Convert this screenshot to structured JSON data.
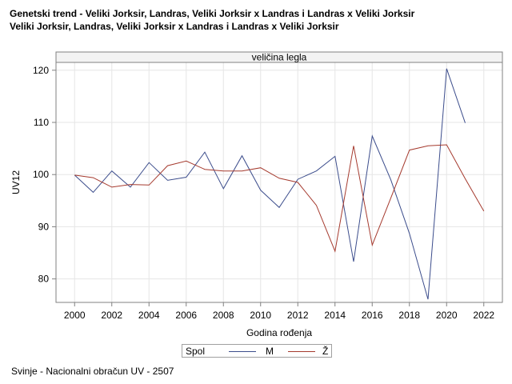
{
  "titles": [
    "Genetski trend - Veliki Jorksir, Landras, Veliki Jorksir x Landras i Landras x Veliki Jorksir",
    "Veliki Jorksir, Landras, Veliki Jorksir x Landras i Landras x Veliki Jorksir"
  ],
  "footnote": "Svinje - Nacionalni obračun UV - 2507",
  "legend": {
    "title": "Spol"
  },
  "colors": {
    "M": "#3c4d8c",
    "Z": "#a53a2e",
    "grid": "#e6e6e6",
    "frame": "#808080"
  },
  "chart_data": {
    "type": "line",
    "panel_title": "veličina legla",
    "xlabel": "Godina rođenja",
    "ylabel": "UV12",
    "xlim": [
      1999,
      2023
    ],
    "ylim": [
      75.5,
      121.5
    ],
    "xticks": [
      2000,
      2002,
      2004,
      2006,
      2008,
      2010,
      2012,
      2014,
      2016,
      2018,
      2020,
      2022
    ],
    "yticks": [
      80,
      90,
      100,
      110,
      120
    ],
    "grid": true,
    "legend_position": "bottom",
    "series": [
      {
        "name": "M",
        "x": [
          2000,
          2001,
          2002,
          2003,
          2004,
          2005,
          2006,
          2007,
          2008,
          2009,
          2010,
          2011,
          2012,
          2013,
          2014,
          2015,
          2016,
          2017,
          2018,
          2019,
          2020,
          2021
        ],
        "y": [
          99.9,
          96.6,
          100.7,
          97.6,
          102.3,
          98.9,
          99.5,
          104.3,
          97.3,
          103.6,
          97.0,
          93.7,
          99.1,
          100.7,
          103.5,
          83.3,
          107.4,
          99.0,
          88.7,
          76.1,
          120.3,
          109.9
        ]
      },
      {
        "name": "Ž",
        "x": [
          2000,
          2001,
          2002,
          2003,
          2004,
          2005,
          2006,
          2007,
          2008,
          2009,
          2010,
          2011,
          2012,
          2013,
          2014,
          2015,
          2016,
          2017,
          2018,
          2019,
          2020,
          2021,
          2022
        ],
        "y": [
          99.9,
          99.4,
          97.6,
          98.1,
          98.0,
          101.7,
          102.6,
          101.0,
          100.7,
          100.7,
          101.3,
          99.3,
          98.5,
          94.1,
          85.3,
          105.5,
          86.5,
          95.5,
          104.7,
          105.5,
          105.7,
          99.2,
          93.0
        ]
      }
    ]
  }
}
